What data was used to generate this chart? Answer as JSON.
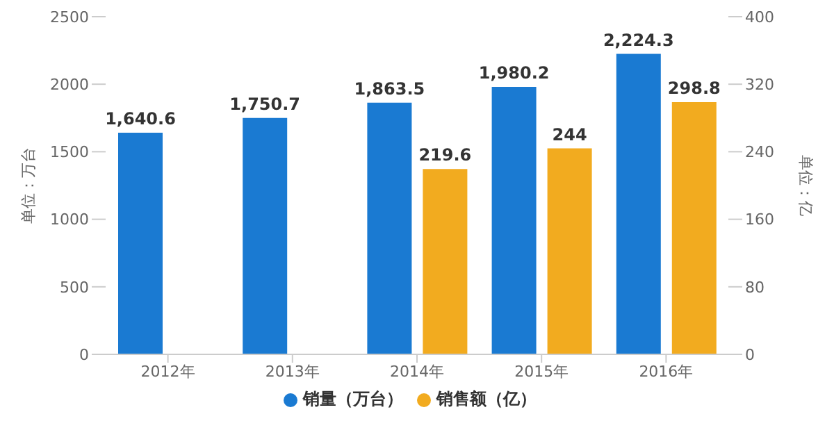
{
  "chart_data": {
    "type": "bar",
    "categories": [
      "2012年",
      "2013年",
      "2014年",
      "2015年",
      "2016年"
    ],
    "series": [
      {
        "name": "销量（万台）",
        "color": "#1a7ad2",
        "values": [
          1640.6,
          1750.7,
          1863.5,
          1980.2,
          2224.3
        ],
        "value_labels": [
          "1,640.6",
          "1,750.7",
          "1,863.5",
          "1,980.2",
          "2,224.3"
        ]
      },
      {
        "name": "销售额（亿）",
        "color": "#f2ab1f",
        "axis": "y2",
        "values": [
          null,
          null,
          219.6,
          244,
          298.8
        ],
        "value_labels": [
          null,
          null,
          "219.6",
          "244",
          "298.8"
        ]
      }
    ],
    "ylabel": "单位：万台",
    "y2label": "单位：亿",
    "ylim": [
      0,
      2500
    ],
    "yticks": [
      0,
      500,
      1000,
      1500,
      2000,
      2500
    ],
    "y2lim": [
      0,
      400
    ],
    "y2ticks": [
      0,
      80,
      160,
      240,
      320,
      400
    ],
    "legend": "bottom"
  }
}
